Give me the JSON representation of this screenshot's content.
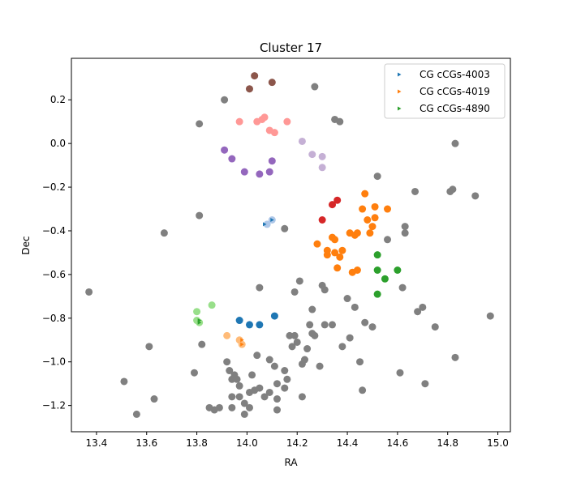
{
  "chart_data": {
    "type": "scatter",
    "title": "Cluster 17",
    "xlabel": "RA",
    "ylabel": "Dec",
    "xlim": [
      13.3,
      15.05
    ],
    "ylim": [
      -1.32,
      0.39
    ],
    "xticks": [
      13.4,
      13.6,
      13.8,
      14.0,
      14.2,
      14.4,
      14.6,
      14.8,
      15.0
    ],
    "yticks": [
      -1.2,
      -1.0,
      -0.8,
      -0.6,
      -0.4,
      -0.2,
      0.0,
      0.2
    ],
    "xtick_labels": [
      "13.4",
      "13.6",
      "13.8",
      "14.0",
      "14.2",
      "14.4",
      "14.6",
      "14.8",
      "15.0"
    ],
    "ytick_labels": [
      "−1.2",
      "−1.0",
      "−0.8",
      "−0.6",
      "−0.4",
      "−0.2",
      "0.0",
      "0.2"
    ],
    "grid": false,
    "legend_position": "top-right",
    "background_points": {
      "color": "#808080",
      "points": [
        [
          13.37,
          -0.68
        ],
        [
          13.51,
          -1.09
        ],
        [
          13.56,
          -1.24
        ],
        [
          13.61,
          -0.93
        ],
        [
          13.63,
          -1.17
        ],
        [
          13.67,
          -0.41
        ],
        [
          13.79,
          -1.05
        ],
        [
          13.81,
          -0.33
        ],
        [
          13.81,
          0.09
        ],
        [
          13.82,
          -0.92
        ],
        [
          13.85,
          -1.21
        ],
        [
          13.87,
          -1.22
        ],
        [
          13.89,
          -1.21
        ],
        [
          13.91,
          0.2
        ],
        [
          13.92,
          -1.0
        ],
        [
          13.93,
          -1.04
        ],
        [
          13.94,
          -1.08
        ],
        [
          13.94,
          -1.16
        ],
        [
          13.94,
          -1.21
        ],
        [
          13.95,
          -1.06
        ],
        [
          13.96,
          -1.08
        ],
        [
          13.97,
          -1.11
        ],
        [
          13.97,
          -1.16
        ],
        [
          13.99,
          -1.19
        ],
        [
          13.99,
          -1.24
        ],
        [
          14.01,
          -1.14
        ],
        [
          14.01,
          -1.21
        ],
        [
          14.02,
          -1.06
        ],
        [
          14.03,
          -1.13
        ],
        [
          14.04,
          -0.97
        ],
        [
          14.05,
          -0.66
        ],
        [
          14.05,
          -1.12
        ],
        [
          14.07,
          -1.16
        ],
        [
          14.09,
          -0.99
        ],
        [
          14.09,
          -1.14
        ],
        [
          14.11,
          -1.02
        ],
        [
          14.12,
          -1.1
        ],
        [
          14.12,
          -1.17
        ],
        [
          14.12,
          -1.22
        ],
        [
          14.15,
          -0.39
        ],
        [
          14.15,
          -1.12
        ],
        [
          14.15,
          -1.04
        ],
        [
          14.16,
          -1.08
        ],
        [
          14.17,
          -0.88
        ],
        [
          14.18,
          -0.93
        ],
        [
          14.19,
          -0.68
        ],
        [
          14.19,
          -0.88
        ],
        [
          14.2,
          -0.91
        ],
        [
          14.21,
          -0.63
        ],
        [
          14.22,
          -1.01
        ],
        [
          14.22,
          -1.16
        ],
        [
          14.23,
          -0.99
        ],
        [
          14.24,
          -0.94
        ],
        [
          14.25,
          -0.83
        ],
        [
          14.26,
          -0.76
        ],
        [
          14.26,
          -0.87
        ],
        [
          14.27,
          -0.88
        ],
        [
          14.27,
          0.26
        ],
        [
          14.29,
          -1.02
        ],
        [
          14.3,
          -0.65
        ],
        [
          14.31,
          -0.83
        ],
        [
          14.31,
          -0.67
        ],
        [
          14.34,
          -0.83
        ],
        [
          14.35,
          0.11
        ],
        [
          14.37,
          0.1
        ],
        [
          14.38,
          -0.93
        ],
        [
          14.4,
          -0.71
        ],
        [
          14.41,
          -0.89
        ],
        [
          14.43,
          -0.75
        ],
        [
          14.45,
          -1.0
        ],
        [
          14.46,
          -1.13
        ],
        [
          14.47,
          -0.82
        ],
        [
          14.5,
          -0.84
        ],
        [
          14.52,
          -0.15
        ],
        [
          14.56,
          -0.44
        ],
        [
          14.61,
          -1.05
        ],
        [
          14.62,
          -0.66
        ],
        [
          14.63,
          -0.38
        ],
        [
          14.63,
          -0.41
        ],
        [
          14.67,
          -0.22
        ],
        [
          14.68,
          -0.77
        ],
        [
          14.7,
          -0.75
        ],
        [
          14.71,
          -1.1
        ],
        [
          14.75,
          -0.84
        ],
        [
          14.81,
          -0.22
        ],
        [
          14.82,
          -0.21
        ],
        [
          14.83,
          -0.98
        ],
        [
          14.83,
          0.0
        ],
        [
          14.91,
          -0.24
        ],
        [
          14.97,
          -0.79
        ]
      ]
    },
    "clusters": [
      {
        "color": "#1f77b4",
        "points": [
          [
            13.97,
            -0.81
          ],
          [
            14.01,
            -0.83
          ],
          [
            14.05,
            -0.83
          ],
          [
            14.11,
            -0.79
          ]
        ]
      },
      {
        "color": "#ff7f0e",
        "points": [
          [
            14.28,
            -0.46
          ],
          [
            14.32,
            -0.49
          ],
          [
            14.32,
            -0.51
          ],
          [
            14.34,
            -0.43
          ],
          [
            14.35,
            -0.44
          ],
          [
            14.35,
            -0.5
          ],
          [
            14.36,
            -0.57
          ],
          [
            14.37,
            -0.52
          ],
          [
            14.38,
            -0.49
          ],
          [
            14.41,
            -0.41
          ],
          [
            14.42,
            -0.59
          ],
          [
            14.43,
            -0.42
          ],
          [
            14.44,
            -0.41
          ],
          [
            14.44,
            -0.58
          ],
          [
            14.46,
            -0.3
          ],
          [
            14.47,
            -0.23
          ],
          [
            14.48,
            -0.35
          ],
          [
            14.49,
            -0.41
          ],
          [
            14.5,
            -0.38
          ],
          [
            14.51,
            -0.29
          ],
          [
            14.51,
            -0.34
          ],
          [
            14.56,
            -0.3
          ]
        ]
      },
      {
        "color": "#2ca02c",
        "points": [
          [
            14.52,
            -0.51
          ],
          [
            14.52,
            -0.58
          ],
          [
            14.52,
            -0.69
          ],
          [
            14.55,
            -0.62
          ],
          [
            14.6,
            -0.58
          ]
        ]
      },
      {
        "color": "#d62728",
        "points": [
          [
            14.3,
            -0.35
          ],
          [
            14.34,
            -0.28
          ],
          [
            14.36,
            -0.26
          ]
        ]
      },
      {
        "color": "#9467bd",
        "points": [
          [
            13.91,
            -0.03
          ],
          [
            13.94,
            -0.07
          ],
          [
            13.99,
            -0.13
          ],
          [
            14.05,
            -0.14
          ],
          [
            14.09,
            -0.13
          ],
          [
            14.1,
            -0.08
          ]
        ]
      },
      {
        "color": "#8c564b",
        "points": [
          [
            14.01,
            0.25
          ],
          [
            14.03,
            0.31
          ],
          [
            14.1,
            0.28
          ]
        ]
      },
      {
        "color": "#ff9896",
        "points": [
          [
            13.97,
            0.1
          ],
          [
            14.04,
            0.1
          ],
          [
            14.06,
            0.11
          ],
          [
            14.07,
            0.12
          ],
          [
            14.09,
            0.06
          ],
          [
            14.11,
            0.05
          ],
          [
            14.16,
            0.1
          ]
        ]
      },
      {
        "color": "#c5b0d5",
        "points": [
          [
            14.22,
            0.01
          ],
          [
            14.26,
            -0.05
          ],
          [
            14.3,
            -0.06
          ],
          [
            14.3,
            -0.11
          ]
        ]
      },
      {
        "color": "#aec7e8",
        "points": [
          [
            14.08,
            -0.37
          ],
          [
            14.1,
            -0.35
          ]
        ]
      },
      {
        "color": "#98df8a",
        "points": [
          [
            13.8,
            -0.77
          ],
          [
            13.8,
            -0.81
          ],
          [
            13.81,
            -0.82
          ],
          [
            13.86,
            -0.74
          ]
        ]
      },
      {
        "color": "#ffbb78",
        "points": [
          [
            13.92,
            -0.88
          ],
          [
            13.97,
            -0.9
          ],
          [
            13.98,
            -0.92
          ]
        ]
      }
    ],
    "series": [
      {
        "name": "CG cCGs-4003",
        "color": "#1f77b4",
        "points": [
          [
            14.07,
            -0.37
          ],
          [
            14.1,
            -0.35
          ]
        ]
      },
      {
        "name": "CG cCGs-4019",
        "color": "#ff7f0e",
        "points": [
          [
            13.98,
            -0.9
          ],
          [
            13.98,
            -0.92
          ]
        ]
      },
      {
        "name": "CG cCGs-4890",
        "color": "#2ca02c",
        "points": [
          [
            13.81,
            -0.81
          ],
          [
            13.81,
            -0.82
          ]
        ]
      }
    ]
  }
}
